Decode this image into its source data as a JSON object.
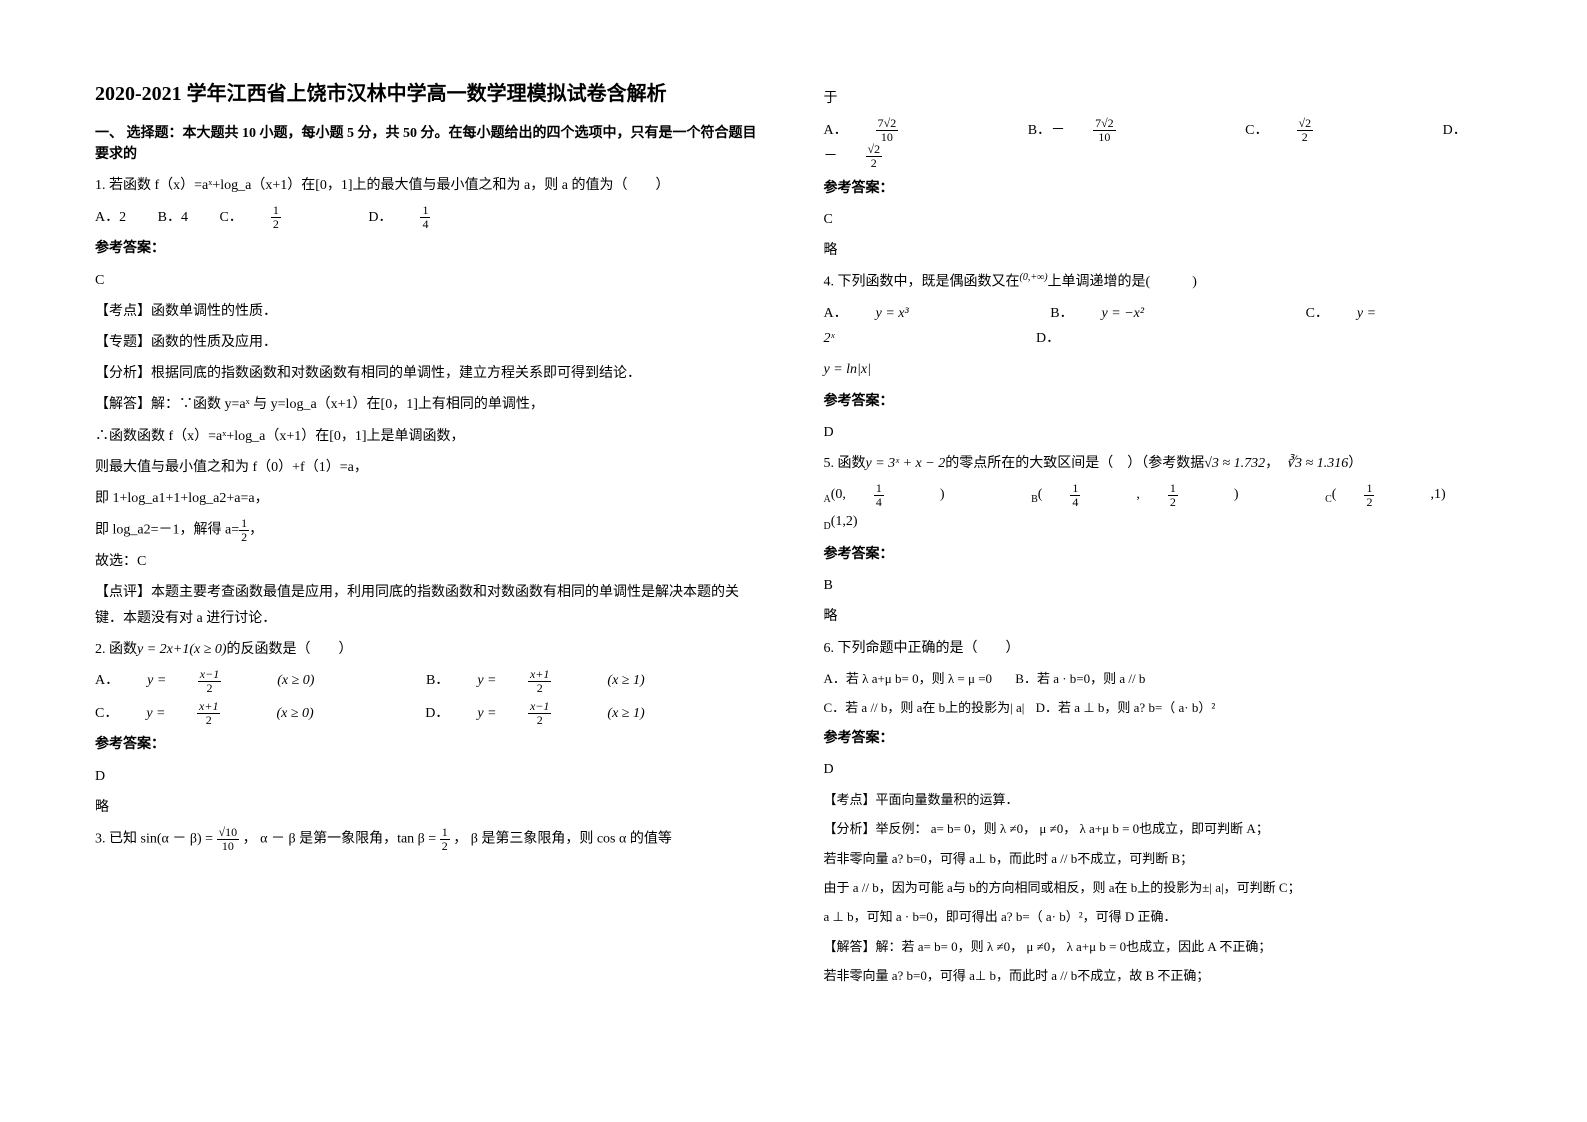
{
  "title": "2020-2021 学年江西省上饶市汉林中学高一数学理模拟试卷含解析",
  "section1_head": "一、 选择题：本大题共 10 小题，每小题 5 分，共 50 分。在每小题给出的四个选项中，只有是一个符合题目要求的",
  "q1": {
    "stem": "1. 若函数 f（x）=aˣ+log_a（x+1）在[0，1]上的最大值与最小值之和为 a，则 a 的值为（　　）",
    "optA": "A．2",
    "optB": "B．4",
    "optC_pre": "C．",
    "optC_num": "1",
    "optC_den": "2",
    "optD_pre": "D．",
    "optD_num": "1",
    "optD_den": "4",
    "ans_label": "参考答案：",
    "ans": "C",
    "kp": "【考点】函数单调性的性质．",
    "zt": "【专题】函数的性质及应用．",
    "fx": "【分析】根据同底的指数函数和对数函数有相同的单调性，建立方程关系即可得到结论．",
    "jd1": "【解答】解：∵函数 y=aˣ 与 y=log_a（x+1）在[0，1]上有相同的单调性，",
    "jd2": "∴函数函数 f（x）=aˣ+log_a（x+1）在[0，1]上是单调函数，",
    "jd3": "则最大值与最小值之和为 f（0）+f（1）=a，",
    "jd4": "即 1+log_a1+1+log_a2+a=a，",
    "jd5_pre": "即 log_a2=－1，解得 a=",
    "jd5_num": "1",
    "jd5_den": "2",
    "jd5_post": "，",
    "jd6": "故选：C",
    "dp": "【点评】本题主要考查函数最值是应用，利用同底的指数函数和对数函数有相同的单调性是解决本题的关键．本题没有对 a 进行讨论．"
  },
  "q2": {
    "stem_pre": "2. 函数",
    "stem_fn": "y = 2x+1(x ≥ 0)",
    "stem_post": "的反函数是（　　）",
    "optA_pre": "A．",
    "optA_fn": "y = ",
    "optA_num": "x−1",
    "optA_den": "2",
    "optA_dom": "(x ≥ 0)",
    "optB_pre": "B．",
    "optB_fn": "y = ",
    "optB_num": "x+1",
    "optB_den": "2",
    "optB_dom": "(x ≥ 1)",
    "optC_pre": "C．",
    "optC_fn": "y = ",
    "optC_num": "x+1",
    "optC_den": "2",
    "optC_dom": "(x ≥ 0)",
    "optD_pre": "D．",
    "optD_fn": "y = ",
    "optD_num": "x−1",
    "optD_den": "2",
    "optD_dom": "(x ≥ 1)",
    "ans_label": "参考答案：",
    "ans": "D",
    "lue": "略"
  },
  "q3": {
    "stem_pre": "3. 已知 sin(α － β) = ",
    "s_num": "√10",
    "s_den": "10",
    "stem_mid1": " ， α － β 是第一象限角，tan β = ",
    "t_num": "1",
    "t_den": "2",
    "stem_mid2": " ， β 是第三象限角，则 cos α 的值等",
    "cont": "于",
    "optA_pre": "A．",
    "optA_num": "7√2",
    "optA_den": "10",
    "optB_pre": "B．－",
    "optB_num": "7√2",
    "optB_den": "10",
    "optC_pre": "C．",
    "optC_num": "√2",
    "optC_den": "2",
    "optD_pre": "D．－",
    "optD_num": "√2",
    "optD_den": "2",
    "ans_label": "参考答案：",
    "ans": "C",
    "lue": "略"
  },
  "q4": {
    "stem_pre": "4. 下列函数中，既是偶函数又在",
    "stem_dom": "(0,+∞)",
    "stem_post": "上单调递增的是(　　　)",
    "optA_pre": "A．",
    "optA": "y = x³",
    "optB_pre": "B．",
    "optB": "y = −x²",
    "optC_pre": "C．",
    "optC": "y = 2ˣ",
    "optD_pre": "D．",
    "optD": "y = ln|x|",
    "ans_label": "参考答案：",
    "ans": "D"
  },
  "q5": {
    "stem_pre": "5. 函数",
    "stem_fn": "y = 3ˣ + x − 2",
    "stem_mid": "的零点所在的大致区间是（　）（参考数据",
    "ref1": "√3 ≈ 1.732",
    "refsep": "，",
    "ref2": "∛3 ≈ 1.316",
    "stem_post": "）",
    "optA_pre": "A",
    "optA_l": "(0,",
    "optA_num": "1",
    "optA_den": "4",
    "optA_r": ")",
    "optB_pre": "B",
    "optB_l": "(",
    "optB_num1": "1",
    "optB_den1": "4",
    "optB_mid": ",",
    "optB_num2": "1",
    "optB_den2": "2",
    "optB_r": ")",
    "optC_pre": "C",
    "optC_l": "(",
    "optC_num": "1",
    "optC_den": "2",
    "optC_r": ",1)",
    "optD_pre": "D",
    "optD": "(1,2)",
    "ans_label": "参考答案：",
    "ans": "B",
    "lue": "略"
  },
  "q6": {
    "stem": "6. 下列命题中正确的是（　　）",
    "optA": "A．若 λ a+μ b= 0，则 λ = μ =0",
    "optB": "B．若 a · b=0，则 a // b",
    "optC": "C．若 a // b，则 a在 b上的投影为| a|",
    "optD": "D．若 a ⊥ b，则 a? b=（ a· b）²",
    "ans_label": "参考答案：",
    "ans": "D",
    "kp": "【考点】平面向量数量积的运算．",
    "fx1": "【分析】举反例： a= b= 0，则 λ ≠0， μ ≠0， λ a+μ b = 0也成立，即可判断 A；",
    "fx2": "若非零向量 a? b=0，可得 a⊥ b，而此时 a // b不成立，可判断 B；",
    "fx3": "由于 a // b，因为可能 a与 b的方向相同或相反，则 a在 b上的投影为±| a|，可判断 C；",
    "fx4": "a ⊥ b，可知 a · b=0，即可得出 a? b=（ a· b）²，可得 D 正确．",
    "jd1": "【解答】解：若 a= b= 0，则 λ ≠0， μ ≠0， λ a+μ b = 0也成立，因此 A 不正确；",
    "jd2": "若非零向量 a? b=0，可得 a⊥ b，而此时 a // b不成立，故 B 不正确；"
  }
}
